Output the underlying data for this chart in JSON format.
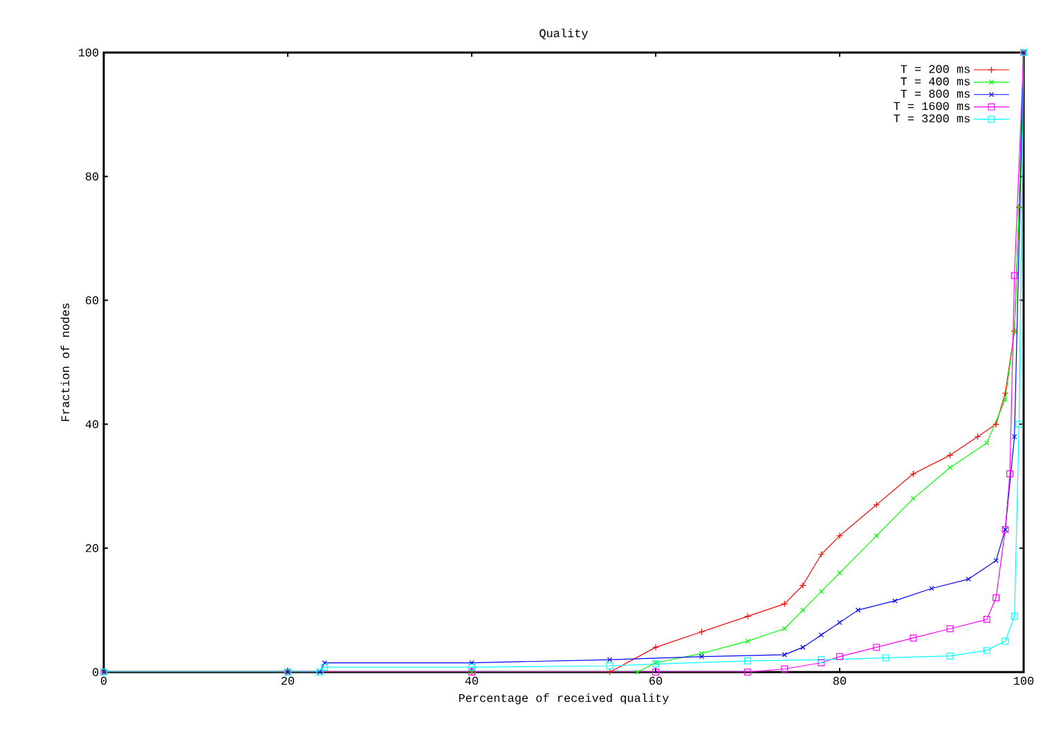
{
  "chart_data": {
    "type": "line",
    "title": "Quality",
    "xlabel": "Percentage of received quality",
    "ylabel": "Fraction of nodes",
    "xlim": [
      0,
      100
    ],
    "ylim": [
      0,
      100
    ],
    "xticks": [
      0,
      20,
      40,
      60,
      80,
      100
    ],
    "yticks": [
      0,
      20,
      40,
      60,
      80,
      100
    ],
    "grid": false,
    "legend": "top right",
    "line_style": "solid",
    "series": [
      {
        "name": "T = 200 ms",
        "color": "#ff0000",
        "marker": "plus",
        "x": [
          0,
          20,
          40,
          55,
          60,
          65,
          70,
          74,
          76,
          78,
          80,
          84,
          88,
          92,
          95,
          97,
          98,
          99,
          99.5,
          100
        ],
        "values": [
          0,
          0,
          0,
          0,
          4,
          6.5,
          9,
          11,
          14,
          19,
          22,
          27,
          32,
          35,
          38,
          40,
          45,
          55,
          75,
          100
        ]
      },
      {
        "name": "T = 400 ms",
        "color": "#00ff00",
        "marker": "cross",
        "x": [
          0,
          20,
          40,
          58,
          60,
          65,
          70,
          74,
          76,
          78,
          80,
          84,
          88,
          92,
          96,
          98,
          99,
          99.5,
          100
        ],
        "values": [
          0,
          0,
          0,
          0,
          1.5,
          3,
          5,
          7,
          10,
          13,
          16,
          22,
          28,
          33,
          37,
          44,
          55,
          75,
          100
        ]
      },
      {
        "name": "T = 800 ms",
        "color": "#0000ff",
        "marker": "cross",
        "x": [
          0,
          20,
          23.5,
          24,
          40,
          55,
          65,
          74,
          76,
          78,
          80,
          82,
          86,
          90,
          94,
          97,
          98,
          99,
          100
        ],
        "values": [
          0,
          0,
          0,
          1.5,
          1.5,
          2,
          2.5,
          2.8,
          4,
          6,
          8,
          10,
          11.5,
          13.5,
          15,
          18,
          23,
          38,
          100
        ]
      },
      {
        "name": "T = 1600 ms",
        "color": "#ff00ff",
        "marker": "square",
        "x": [
          0,
          20,
          40,
          60,
          70,
          74,
          78,
          80,
          84,
          88,
          92,
          96,
          97,
          98,
          98.5,
          99,
          100
        ],
        "values": [
          0,
          0,
          0,
          0,
          0,
          0.5,
          1.5,
          2.5,
          4,
          5.5,
          7,
          8.5,
          12,
          23,
          32,
          64,
          100
        ]
      },
      {
        "name": "T = 3200 ms",
        "color": "#00ffff",
        "marker": "square",
        "x": [
          0,
          20,
          23.5,
          24,
          40,
          55,
          60,
          70,
          78,
          85,
          92,
          96,
          98,
          99,
          99.5,
          100
        ],
        "values": [
          0,
          0,
          0,
          0.8,
          0.8,
          1,
          1.3,
          1.8,
          2,
          2.3,
          2.6,
          3.5,
          5,
          9,
          40,
          100
        ]
      }
    ]
  }
}
